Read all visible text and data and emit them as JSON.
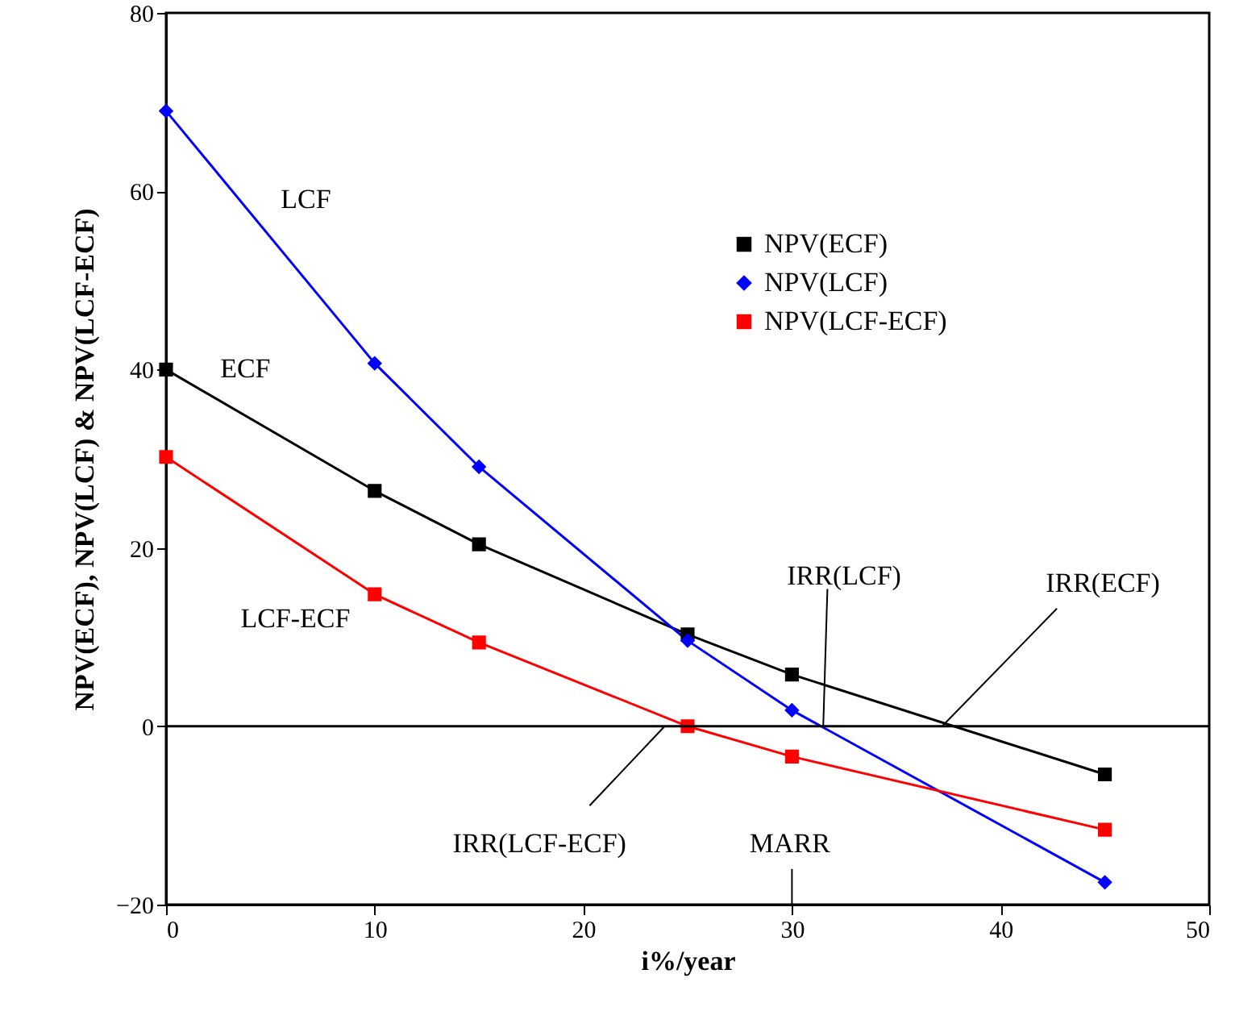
{
  "chart_data": {
    "type": "line",
    "xlabel": "i%/year",
    "ylabel": "NPV(ECF), NPV(LCF) & NPV(LCF-ECF)",
    "xlim": [
      0,
      50
    ],
    "xticks": [
      0,
      10,
      20,
      30,
      40,
      50
    ],
    "ylim": [
      -20,
      80
    ],
    "yticks": [
      -20,
      0,
      20,
      40,
      60,
      80
    ],
    "x": [
      0,
      10,
      15,
      25,
      30,
      45
    ],
    "series": [
      {
        "name": "NPV(ECF)",
        "color": "#000000",
        "marker": "square",
        "values": [
          40,
          26.4,
          20.4,
          10.3,
          5.8,
          -5.4
        ]
      },
      {
        "name": "NPV(LCF)",
        "color": "#0000ff",
        "marker": "diamond",
        "values": [
          69,
          40.7,
          29.1,
          9.6,
          1.8,
          -17.5
        ]
      },
      {
        "name": "NPV(LCF-ECF)",
        "color": "#ff0000",
        "marker": "square",
        "values": [
          30.2,
          14.8,
          9.4,
          0,
          -3.4,
          -11.6
        ]
      }
    ],
    "ref_lines": [
      {
        "axis": "y",
        "value": 0,
        "color": "#000000"
      }
    ],
    "annotations": [
      "LCF",
      "ECF",
      "LCF-ECF",
      {
        "text": "IRR(LCF)",
        "x": 31.5,
        "y": 0
      },
      {
        "text": "IRR(ECF)",
        "x": 37.2,
        "y": 0
      },
      {
        "text": "IRR(LCF-ECF)",
        "x": 23.9,
        "y": 0
      },
      "MARR"
    ],
    "legend": "top right",
    "grid": false,
    "line_style": "solid"
  }
}
